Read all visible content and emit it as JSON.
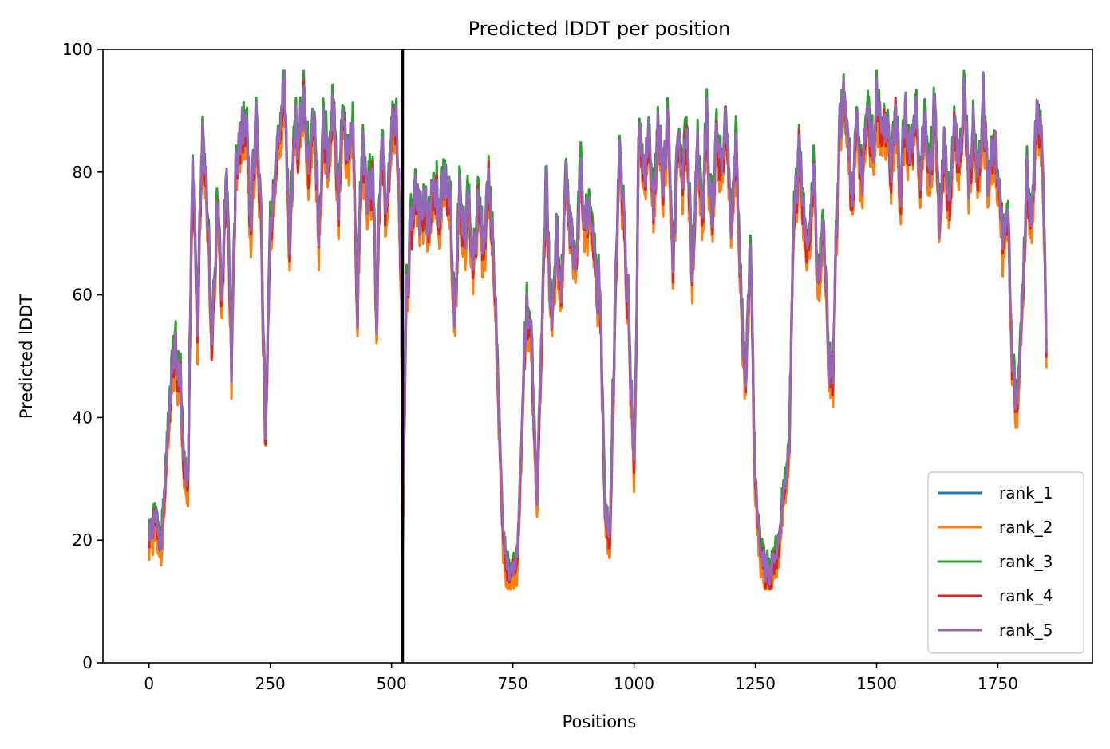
{
  "chart_data": {
    "type": "line",
    "title": "Predicted lDDT per position",
    "xlabel": "Positions",
    "ylabel": "Predicted lDDT",
    "xlim": [
      -95,
      1945
    ],
    "ylim": [
      0,
      100
    ],
    "xticks": [
      0,
      250,
      500,
      750,
      1000,
      1250,
      1500,
      1750
    ],
    "yticks": [
      0,
      20,
      40,
      60,
      80,
      100
    ],
    "grid": false,
    "legend_position": "lower-right",
    "vline_x": 523,
    "vline_color": "#000000",
    "profile": [
      [
        0,
        20
      ],
      [
        12,
        23
      ],
      [
        25,
        18
      ],
      [
        35,
        32
      ],
      [
        45,
        45
      ],
      [
        55,
        52
      ],
      [
        65,
        45
      ],
      [
        72,
        30
      ],
      [
        80,
        28
      ],
      [
        90,
        82
      ],
      [
        100,
        55
      ],
      [
        110,
        85
      ],
      [
        120,
        72
      ],
      [
        130,
        48
      ],
      [
        140,
        78
      ],
      [
        150,
        60
      ],
      [
        160,
        80
      ],
      [
        170,
        50
      ],
      [
        180,
        82
      ],
      [
        190,
        85
      ],
      [
        200,
        90
      ],
      [
        210,
        70
      ],
      [
        220,
        88
      ],
      [
        230,
        75
      ],
      [
        240,
        35
      ],
      [
        250,
        70
      ],
      [
        260,
        78
      ],
      [
        270,
        88
      ],
      [
        280,
        92
      ],
      [
        290,
        68
      ],
      [
        300,
        88
      ],
      [
        310,
        82
      ],
      [
        320,
        92
      ],
      [
        330,
        80
      ],
      [
        340,
        90
      ],
      [
        350,
        70
      ],
      [
        360,
        88
      ],
      [
        370,
        80
      ],
      [
        380,
        90
      ],
      [
        390,
        75
      ],
      [
        400,
        90
      ],
      [
        410,
        82
      ],
      [
        420,
        88
      ],
      [
        430,
        60
      ],
      [
        440,
        85
      ],
      [
        450,
        72
      ],
      [
        460,
        80
      ],
      [
        470,
        55
      ],
      [
        480,
        85
      ],
      [
        490,
        70
      ],
      [
        500,
        90
      ],
      [
        510,
        88
      ],
      [
        520,
        60
      ],
      [
        523,
        20
      ],
      [
        530,
        60
      ],
      [
        540,
        70
      ],
      [
        550,
        76
      ],
      [
        560,
        72
      ],
      [
        570,
        75
      ],
      [
        580,
        70
      ],
      [
        590,
        78
      ],
      [
        600,
        74
      ],
      [
        610,
        78
      ],
      [
        620,
        75
      ],
      [
        630,
        55
      ],
      [
        640,
        78
      ],
      [
        650,
        70
      ],
      [
        660,
        77
      ],
      [
        670,
        64
      ],
      [
        680,
        76
      ],
      [
        690,
        65
      ],
      [
        700,
        77
      ],
      [
        710,
        66
      ],
      [
        720,
        45
      ],
      [
        730,
        20
      ],
      [
        740,
        14
      ],
      [
        750,
        14
      ],
      [
        760,
        18
      ],
      [
        770,
        40
      ],
      [
        780,
        58
      ],
      [
        790,
        45
      ],
      [
        800,
        25
      ],
      [
        810,
        55
      ],
      [
        820,
        78
      ],
      [
        830,
        55
      ],
      [
        840,
        70
      ],
      [
        850,
        60
      ],
      [
        860,
        78
      ],
      [
        870,
        70
      ],
      [
        880,
        65
      ],
      [
        890,
        80
      ],
      [
        900,
        70
      ],
      [
        910,
        77
      ],
      [
        920,
        65
      ],
      [
        930,
        60
      ],
      [
        940,
        25
      ],
      [
        950,
        19
      ],
      [
        960,
        55
      ],
      [
        970,
        82
      ],
      [
        980,
        70
      ],
      [
        990,
        55
      ],
      [
        1000,
        30
      ],
      [
        1010,
        85
      ],
      [
        1020,
        78
      ],
      [
        1030,
        88
      ],
      [
        1040,
        72
      ],
      [
        1050,
        88
      ],
      [
        1060,
        80
      ],
      [
        1070,
        88
      ],
      [
        1080,
        65
      ],
      [
        1090,
        88
      ],
      [
        1100,
        80
      ],
      [
        1110,
        85
      ],
      [
        1120,
        60
      ],
      [
        1130,
        85
      ],
      [
        1140,
        75
      ],
      [
        1150,
        88
      ],
      [
        1160,
        70
      ],
      [
        1170,
        85
      ],
      [
        1180,
        78
      ],
      [
        1190,
        88
      ],
      [
        1200,
        68
      ],
      [
        1210,
        85
      ],
      [
        1220,
        60
      ],
      [
        1230,
        45
      ],
      [
        1240,
        70
      ],
      [
        1250,
        28
      ],
      [
        1260,
        18
      ],
      [
        1270,
        15
      ],
      [
        1280,
        14
      ],
      [
        1290,
        16
      ],
      [
        1300,
        20
      ],
      [
        1310,
        28
      ],
      [
        1320,
        35
      ],
      [
        1330,
        70
      ],
      [
        1340,
        82
      ],
      [
        1350,
        75
      ],
      [
        1360,
        65
      ],
      [
        1370,
        80
      ],
      [
        1380,
        60
      ],
      [
        1390,
        75
      ],
      [
        1400,
        50
      ],
      [
        1410,
        45
      ],
      [
        1420,
        80
      ],
      [
        1430,
        92
      ],
      [
        1440,
        88
      ],
      [
        1450,
        75
      ],
      [
        1460,
        88
      ],
      [
        1470,
        78
      ],
      [
        1480,
        90
      ],
      [
        1490,
        82
      ],
      [
        1500,
        92
      ],
      [
        1510,
        85
      ],
      [
        1520,
        90
      ],
      [
        1530,
        80
      ],
      [
        1540,
        88
      ],
      [
        1550,
        75
      ],
      [
        1560,
        90
      ],
      [
        1570,
        82
      ],
      [
        1580,
        88
      ],
      [
        1590,
        78
      ],
      [
        1600,
        90
      ],
      [
        1610,
        80
      ],
      [
        1620,
        88
      ],
      [
        1630,
        70
      ],
      [
        1640,
        85
      ],
      [
        1650,
        72
      ],
      [
        1660,
        88
      ],
      [
        1670,
        80
      ],
      [
        1680,
        90
      ],
      [
        1690,
        78
      ],
      [
        1700,
        88
      ],
      [
        1710,
        80
      ],
      [
        1720,
        90
      ],
      [
        1730,
        78
      ],
      [
        1740,
        85
      ],
      [
        1750,
        80
      ],
      [
        1760,
        70
      ],
      [
        1770,
        75
      ],
      [
        1780,
        45
      ],
      [
        1790,
        40
      ],
      [
        1800,
        60
      ],
      [
        1810,
        80
      ],
      [
        1820,
        70
      ],
      [
        1830,
        88
      ],
      [
        1840,
        85
      ],
      [
        1850,
        52
      ]
    ],
    "series": [
      {
        "name": "rank_1",
        "color": "#1f77b4",
        "offset": 0,
        "seed": 11
      },
      {
        "name": "rank_2",
        "color": "#ff7f0e",
        "offset": -2,
        "seed": 23
      },
      {
        "name": "rank_3",
        "color": "#2ca02c",
        "offset": 2,
        "seed": 37
      },
      {
        "name": "rank_4",
        "color": "#d62728",
        "offset": 0,
        "seed": 51
      },
      {
        "name": "rank_5",
        "color": "#9467bd",
        "offset": 1,
        "seed": 67
      }
    ]
  }
}
